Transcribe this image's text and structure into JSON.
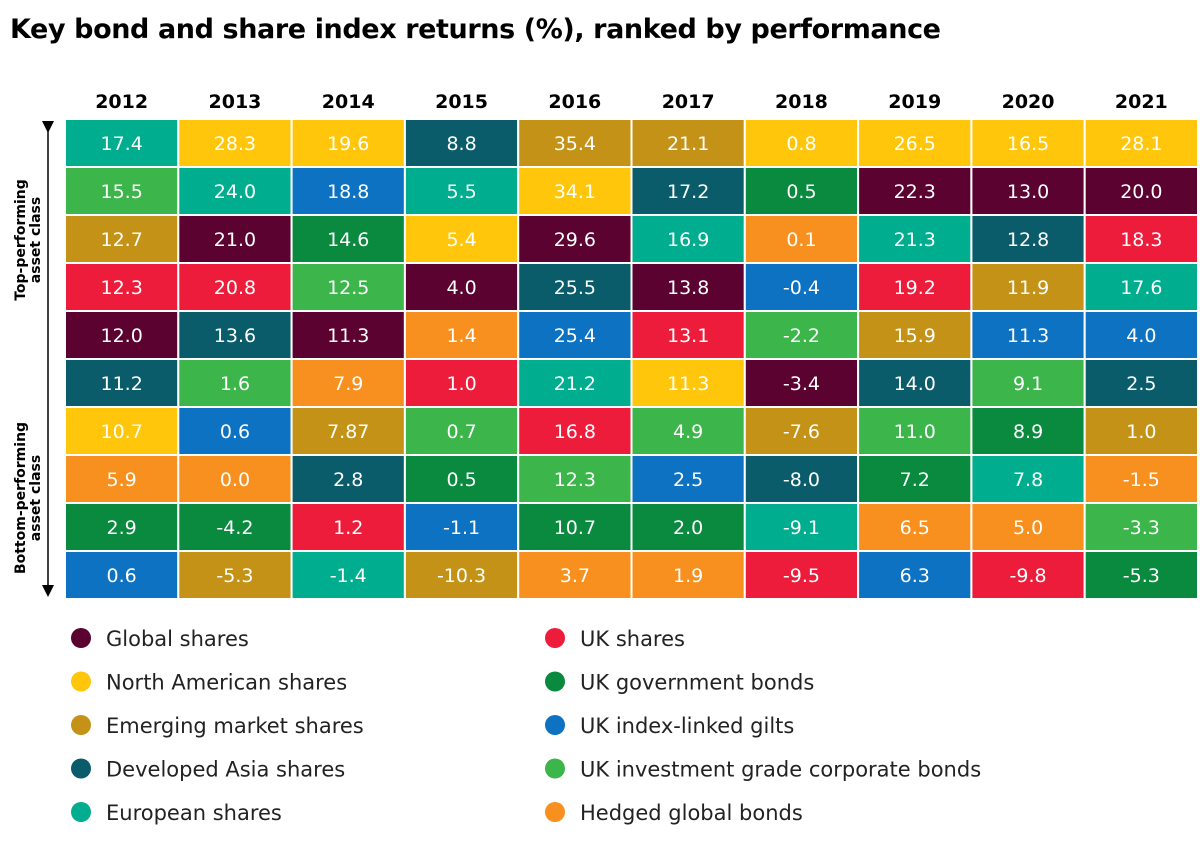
{
  "title": "Key bond and share index returns (%), ranked by performance",
  "side_labels": {
    "top": [
      "Top-performing",
      "asset class"
    ],
    "bottom": [
      "Bottom-performing",
      "asset class"
    ]
  },
  "legend": [
    {
      "key": "GS",
      "label": "Global shares",
      "color": "#5b0230"
    },
    {
      "key": "NAS",
      "label": "North American shares",
      "color": "#ffc60b"
    },
    {
      "key": "EMS",
      "label": "Emerging market shares",
      "color": "#c49216"
    },
    {
      "key": "DAS",
      "label": "Developed Asia shares",
      "color": "#0a5c6b"
    },
    {
      "key": "ES",
      "label": "European shares",
      "color": "#00ad8e"
    },
    {
      "key": "UKS",
      "label": "UK shares",
      "color": "#ec1c3a"
    },
    {
      "key": "UKG",
      "label": "UK government bonds",
      "color": "#0a8a3e"
    },
    {
      "key": "UKI",
      "label": "UK index-linked gilts",
      "color": "#0d72c2"
    },
    {
      "key": "UKC",
      "label": "UK investment grade corporate bonds",
      "color": "#3cb54a"
    },
    {
      "key": "HGB",
      "label": "Hedged global bonds",
      "color": "#f7901e"
    }
  ],
  "chart_data": {
    "type": "table",
    "title": "Key bond and share index returns (%), ranked by performance",
    "years": [
      "2012",
      "2013",
      "2014",
      "2015",
      "2016",
      "2017",
      "2018",
      "2019",
      "2020",
      "2021"
    ],
    "columns": [
      [
        {
          "v": "17.4",
          "c": "ES"
        },
        {
          "v": "15.5",
          "c": "UKC"
        },
        {
          "v": "12.7",
          "c": "EMS"
        },
        {
          "v": "12.3",
          "c": "UKS"
        },
        {
          "v": "12.0",
          "c": "GS"
        },
        {
          "v": "11.2",
          "c": "DAS"
        },
        {
          "v": "10.7",
          "c": "NAS"
        },
        {
          "v": "5.9",
          "c": "HGB"
        },
        {
          "v": "2.9",
          "c": "UKG"
        },
        {
          "v": "0.6",
          "c": "UKI"
        }
      ],
      [
        {
          "v": "28.3",
          "c": "NAS"
        },
        {
          "v": "24.0",
          "c": "ES"
        },
        {
          "v": "21.0",
          "c": "GS"
        },
        {
          "v": "20.8",
          "c": "UKS"
        },
        {
          "v": "13.6",
          "c": "DAS"
        },
        {
          "v": "1.6",
          "c": "UKC"
        },
        {
          "v": "0.6",
          "c": "UKI"
        },
        {
          "v": "0.0",
          "c": "HGB"
        },
        {
          "v": "-4.2",
          "c": "UKG"
        },
        {
          "v": "-5.3",
          "c": "EMS"
        }
      ],
      [
        {
          "v": "19.6",
          "c": "NAS"
        },
        {
          "v": "18.8",
          "c": "UKI"
        },
        {
          "v": "14.6",
          "c": "UKG"
        },
        {
          "v": "12.5",
          "c": "UKC"
        },
        {
          "v": "11.3",
          "c": "GS"
        },
        {
          "v": "7.9",
          "c": "HGB"
        },
        {
          "v": "7.87",
          "c": "EMS"
        },
        {
          "v": "2.8",
          "c": "DAS"
        },
        {
          "v": "1.2",
          "c": "UKS"
        },
        {
          "v": "-1.4",
          "c": "ES"
        }
      ],
      [
        {
          "v": "8.8",
          "c": "DAS"
        },
        {
          "v": "5.5",
          "c": "ES"
        },
        {
          "v": "5.4",
          "c": "NAS"
        },
        {
          "v": "4.0",
          "c": "GS"
        },
        {
          "v": "1.4",
          "c": "HGB"
        },
        {
          "v": "1.0",
          "c": "UKS"
        },
        {
          "v": "0.7",
          "c": "UKC"
        },
        {
          "v": "0.5",
          "c": "UKG"
        },
        {
          "v": "-1.1",
          "c": "UKI"
        },
        {
          "v": "-10.3",
          "c": "EMS"
        }
      ],
      [
        {
          "v": "35.4",
          "c": "EMS"
        },
        {
          "v": "34.1",
          "c": "NAS"
        },
        {
          "v": "29.6",
          "c": "GS"
        },
        {
          "v": "25.5",
          "c": "DAS"
        },
        {
          "v": "25.4",
          "c": "UKI"
        },
        {
          "v": "21.2",
          "c": "ES"
        },
        {
          "v": "16.8",
          "c": "UKS"
        },
        {
          "v": "12.3",
          "c": "UKC"
        },
        {
          "v": "10.7",
          "c": "UKG"
        },
        {
          "v": "3.7",
          "c": "HGB"
        }
      ],
      [
        {
          "v": "21.1",
          "c": "EMS"
        },
        {
          "v": "17.2",
          "c": "DAS"
        },
        {
          "v": "16.9",
          "c": "ES"
        },
        {
          "v": "13.8",
          "c": "GS"
        },
        {
          "v": "13.1",
          "c": "UKS"
        },
        {
          "v": "11.3",
          "c": "NAS"
        },
        {
          "v": "4.9",
          "c": "UKC"
        },
        {
          "v": "2.5",
          "c": "UKI"
        },
        {
          "v": "2.0",
          "c": "UKG"
        },
        {
          "v": "1.9",
          "c": "HGB"
        }
      ],
      [
        {
          "v": "0.8",
          "c": "NAS"
        },
        {
          "v": "0.5",
          "c": "UKG"
        },
        {
          "v": "0.1",
          "c": "HGB"
        },
        {
          "v": "-0.4",
          "c": "UKI"
        },
        {
          "v": "-2.2",
          "c": "UKC"
        },
        {
          "v": "-3.4",
          "c": "GS"
        },
        {
          "v": "-7.6",
          "c": "EMS"
        },
        {
          "v": "-8.0",
          "c": "DAS"
        },
        {
          "v": "-9.1",
          "c": "ES"
        },
        {
          "v": "-9.5",
          "c": "UKS"
        }
      ],
      [
        {
          "v": "26.5",
          "c": "NAS"
        },
        {
          "v": "22.3",
          "c": "GS"
        },
        {
          "v": "21.3",
          "c": "ES"
        },
        {
          "v": "19.2",
          "c": "UKS"
        },
        {
          "v": "15.9",
          "c": "EMS"
        },
        {
          "v": "14.0",
          "c": "DAS"
        },
        {
          "v": "11.0",
          "c": "UKC"
        },
        {
          "v": "7.2",
          "c": "UKG"
        },
        {
          "v": "6.5",
          "c": "HGB"
        },
        {
          "v": "6.3",
          "c": "UKI"
        }
      ],
      [
        {
          "v": "16.5",
          "c": "NAS"
        },
        {
          "v": "13.0",
          "c": "GS"
        },
        {
          "v": "12.8",
          "c": "DAS"
        },
        {
          "v": "11.9",
          "c": "EMS"
        },
        {
          "v": "11.3",
          "c": "UKI"
        },
        {
          "v": "9.1",
          "c": "UKC"
        },
        {
          "v": "8.9",
          "c": "UKG"
        },
        {
          "v": "7.8",
          "c": "ES"
        },
        {
          "v": "5.0",
          "c": "HGB"
        },
        {
          "v": "-9.8",
          "c": "UKS"
        }
      ],
      [
        {
          "v": "28.1",
          "c": "NAS"
        },
        {
          "v": "20.0",
          "c": "GS"
        },
        {
          "v": "18.3",
          "c": "UKS"
        },
        {
          "v": "17.6",
          "c": "ES"
        },
        {
          "v": "4.0",
          "c": "UKI"
        },
        {
          "v": "2.5",
          "c": "DAS"
        },
        {
          "v": "1.0",
          "c": "EMS"
        },
        {
          "v": "-1.5",
          "c": "HGB"
        },
        {
          "v": "-3.3",
          "c": "UKC"
        },
        {
          "v": "-5.3",
          "c": "UKG"
        }
      ]
    ]
  }
}
